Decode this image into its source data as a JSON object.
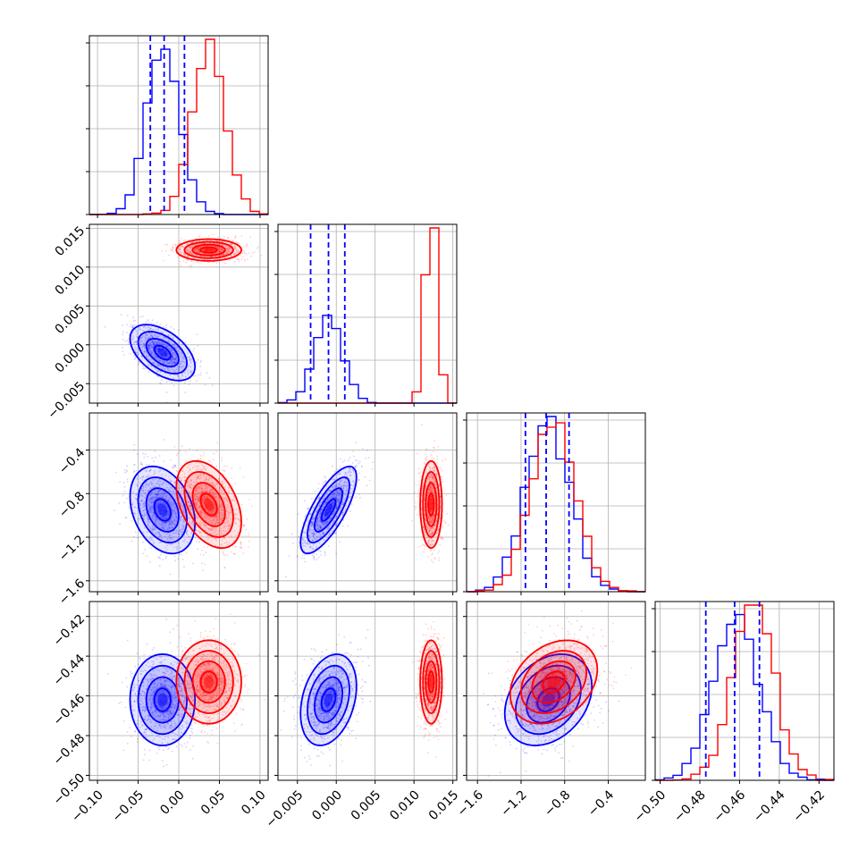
{
  "chart_data": {
    "type": "corner",
    "params": [
      {
        "ticks": [
          -0.1,
          -0.05,
          0.0,
          0.05,
          0.1
        ],
        "tick_labels": [
          "−0.10",
          "−0.05",
          "0.00",
          "0.05",
          "0.10"
        ],
        "range": [
          -0.11,
          0.11
        ]
      },
      {
        "ticks": [
          -0.005,
          0.0,
          0.005,
          0.01,
          0.015
        ],
        "tick_labels": [
          "−0.005",
          "0.000",
          "0.005",
          "0.010",
          "0.015"
        ],
        "range": [
          -0.0075,
          0.0155
        ]
      },
      {
        "ticks": [
          -1.6,
          -1.2,
          -0.8,
          -0.4
        ],
        "tick_labels": [
          "−1.6",
          "−1.2",
          "−0.8",
          "−0.4"
        ],
        "range": [
          -1.7,
          -0.06
        ]
      },
      {
        "ticks": [
          -0.5,
          -0.48,
          -0.46,
          -0.44,
          -0.42
        ],
        "tick_labels": [
          "−0.50",
          "−0.48",
          "−0.46",
          "−0.44",
          "−0.42"
        ],
        "range": [
          -0.5025,
          -0.4125
        ]
      }
    ],
    "series": [
      {
        "color": "#0000ff",
        "means": [
          -0.02,
          -0.001,
          -0.95,
          -0.462
        ],
        "sds": [
          0.02,
          0.0018,
          0.2,
          0.0115
        ],
        "corr": {
          "0-1": -0.5,
          "0-2": -0.3,
          "1-2": 0.75,
          "1-3": 0.3,
          "2-3": 0.3
        }
      },
      {
        "color": "#ff0000",
        "means": [
          0.037,
          0.0122,
          -0.9,
          -0.453
        ],
        "sds": [
          0.02,
          0.0007,
          0.2,
          0.0105
        ],
        "corr": {
          "0-2": -0.4,
          "2-3": 0.3
        }
      }
    ],
    "quantile_lines": [
      [
        -0.035,
        -0.018,
        0.007
      ],
      [
        -0.0033,
        -0.001,
        0.0011
      ],
      [
        -1.16,
        -0.97,
        -0.76
      ],
      [
        -0.477,
        -0.4625,
        -0.45
      ]
    ],
    "quantile_color": "#0000ff",
    "diag_ytick_fractions": [
      0.0,
      0.24,
      0.48,
      0.72,
      0.96
    ],
    "grid": true
  }
}
